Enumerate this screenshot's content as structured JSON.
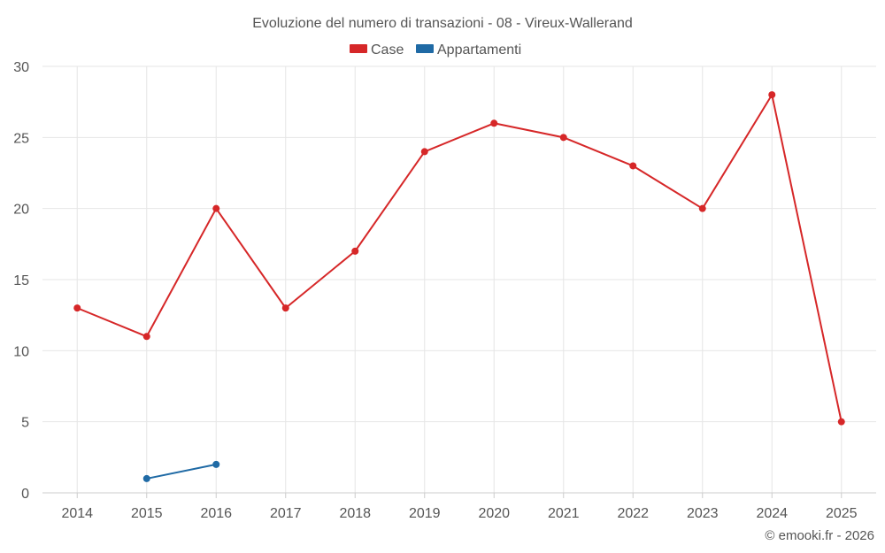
{
  "chart_data": {
    "type": "line",
    "title": "Evoluzione del numero di transazioni - 08 - Vireux-Wallerand",
    "xlabel": "",
    "ylabel": "",
    "x": [
      "2014",
      "2015",
      "2016",
      "2017",
      "2018",
      "2019",
      "2020",
      "2021",
      "2022",
      "2023",
      "2024",
      "2025"
    ],
    "ylim": [
      0,
      30
    ],
    "yticks": [
      0,
      5,
      10,
      15,
      20,
      25,
      30
    ],
    "grid": true,
    "legend_position": "top-center",
    "series": [
      {
        "name": "Case",
        "color": "#d62728",
        "values": [
          13,
          11,
          20,
          13,
          17,
          24,
          26,
          25,
          23,
          20,
          28,
          5
        ]
      },
      {
        "name": "Appartamenti",
        "color": "#1f6aa5",
        "values": [
          null,
          1,
          2,
          null,
          null,
          null,
          null,
          null,
          null,
          null,
          null,
          null
        ]
      }
    ],
    "credit": "© emooki.fr - 2026"
  }
}
